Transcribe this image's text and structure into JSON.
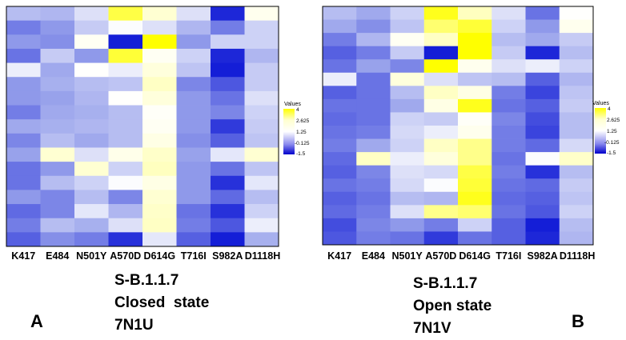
{
  "chart_data": [
    {
      "type": "heatmap",
      "panel": "A",
      "columns": [
        "K417",
        "E484",
        "N501Y",
        "A570D",
        "D614G",
        "T716I",
        "S982A",
        "D1118H"
      ],
      "legend_title": "Values",
      "legend_ticks": [
        "4",
        "2.625",
        "1.25",
        "-0.125",
        "-1.5"
      ],
      "value_range": [
        -1.5,
        4
      ],
      "caption": [
        "S-B.1.1.7",
        "Closed  state",
        "7N1U"
      ],
      "rows": [
        [
          0.3,
          0.2,
          0.8,
          3.5,
          2.2,
          0.8,
          -1.4,
          1.6
        ],
        [
          -0.5,
          -0.2,
          0.5,
          1.2,
          0.8,
          0.2,
          -0.5,
          0.6
        ],
        [
          -0.2,
          -0.3,
          1.5,
          -1.5,
          4.0,
          -0.2,
          0.6,
          0.6
        ],
        [
          -0.6,
          0.5,
          -0.2,
          3.6,
          1.5,
          0.6,
          -1.4,
          0.2
        ],
        [
          1.0,
          0.0,
          1.3,
          1.0,
          2.0,
          0.4,
          -1.5,
          0.5
        ],
        [
          -0.2,
          0.1,
          0.3,
          0.4,
          2.5,
          -0.4,
          -0.9,
          0.5
        ],
        [
          -0.2,
          -0.1,
          0.2,
          1.3,
          2.0,
          -0.2,
          -0.6,
          0.8
        ],
        [
          -0.5,
          0.0,
          0.1,
          0.3,
          1.4,
          -0.2,
          -0.4,
          0.6
        ],
        [
          0.0,
          0.1,
          0.2,
          0.3,
          1.5,
          -0.2,
          -1.2,
          0.5
        ],
        [
          -0.4,
          0.3,
          0.0,
          0.3,
          1.8,
          -0.3,
          -0.8,
          0.4
        ],
        [
          -0.1,
          2.2,
          0.8,
          1.7,
          2.4,
          -0.1,
          0.9,
          2.2
        ],
        [
          -0.6,
          -0.2,
          2.2,
          0.6,
          2.6,
          -0.2,
          -0.6,
          0.4
        ],
        [
          -0.6,
          0.3,
          0.6,
          1.2,
          1.8,
          -0.2,
          -1.3,
          0.9
        ],
        [
          -0.2,
          -0.4,
          0.3,
          -0.4,
          2.2,
          -0.2,
          -0.7,
          0.3
        ],
        [
          -0.7,
          -0.4,
          0.9,
          0.2,
          2.4,
          -0.6,
          -1.3,
          0.6
        ],
        [
          -0.5,
          0.3,
          0.1,
          0.8,
          2.5,
          -0.5,
          -0.9,
          1.0
        ],
        [
          -0.8,
          -0.3,
          -0.5,
          -1.3,
          0.9,
          -0.8,
          -1.5,
          0.1
        ]
      ]
    },
    {
      "type": "heatmap",
      "panel": "B",
      "columns": [
        "K417",
        "E484",
        "N501Y",
        "A570D",
        "D614G",
        "T716I",
        "S982A",
        "D1118H"
      ],
      "legend_title": "Values",
      "legend_ticks": [
        "4",
        "2.625",
        "1.25",
        "-0.125",
        "-1.5"
      ],
      "value_range": [
        -1.5,
        4
      ],
      "caption": [
        "S-B.1.1.7",
        "Open state",
        "7N1V"
      ],
      "rows": [
        [
          0.3,
          0.0,
          0.6,
          3.8,
          2.6,
          0.8,
          -0.6,
          1.3
        ],
        [
          0.0,
          -0.3,
          0.4,
          3.2,
          3.6,
          0.6,
          -0.2,
          1.6
        ],
        [
          -0.5,
          0.2,
          1.5,
          2.5,
          4.0,
          0.3,
          0.0,
          0.5
        ],
        [
          -0.8,
          -0.5,
          0.5,
          -1.5,
          4.0,
          0.5,
          -1.4,
          0.3
        ],
        [
          -0.6,
          -0.1,
          -0.4,
          4.0,
          1.6,
          0.8,
          1.0,
          0.6
        ],
        [
          1.0,
          -0.6,
          2.0,
          0.8,
          0.4,
          0.3,
          -0.8,
          0.2
        ],
        [
          -0.8,
          -0.6,
          0.3,
          2.5,
          1.8,
          -0.5,
          -1.1,
          0.4
        ],
        [
          -0.6,
          -0.6,
          0.0,
          1.8,
          3.8,
          -0.6,
          -0.8,
          0.5
        ],
        [
          -0.7,
          -0.6,
          0.6,
          0.5,
          1.4,
          -0.4,
          -1.0,
          0.3
        ],
        [
          -0.6,
          -0.5,
          0.7,
          1.0,
          1.6,
          -0.5,
          -1.1,
          0.3
        ],
        [
          -0.5,
          0.0,
          0.6,
          2.5,
          3.0,
          -0.5,
          -0.7,
          0.7
        ],
        [
          -0.7,
          2.5,
          1.0,
          2.0,
          3.0,
          -0.6,
          1.2,
          2.4
        ],
        [
          -0.8,
          -0.4,
          0.8,
          0.7,
          3.5,
          -0.5,
          -1.3,
          0.3
        ],
        [
          -0.6,
          -0.5,
          0.7,
          1.2,
          3.6,
          -0.6,
          -0.7,
          0.5
        ],
        [
          -0.8,
          -0.6,
          0.3,
          0.2,
          3.8,
          -0.7,
          -0.8,
          0.4
        ],
        [
          -0.7,
          -0.5,
          0.8,
          3.0,
          3.2,
          -0.6,
          -0.9,
          0.6
        ],
        [
          -1.0,
          -0.4,
          -0.2,
          -0.5,
          0.6,
          -0.8,
          -1.5,
          0.3
        ],
        [
          -0.9,
          -0.5,
          -0.6,
          -1.2,
          -0.6,
          -0.8,
          -1.4,
          0.2
        ]
      ]
    }
  ],
  "panel_letters": {
    "a": "A",
    "b": "B"
  }
}
